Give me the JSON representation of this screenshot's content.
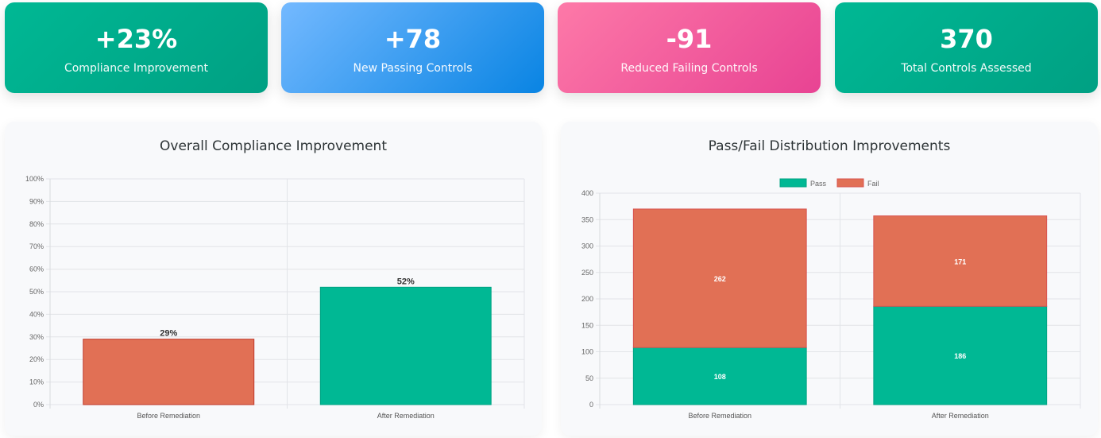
{
  "cards": [
    {
      "value": "+23%",
      "label": "Compliance Improvement",
      "color": "#00b894"
    },
    {
      "value": "+78",
      "label": "New Passing Controls",
      "color": "#0984e3"
    },
    {
      "value": "-91",
      "label": "Reduced Failing Controls",
      "color": "#e84393"
    },
    {
      "value": "370",
      "label": "Total Controls Assessed",
      "color": "#00b894"
    }
  ],
  "chart_data": [
    {
      "type": "bar",
      "title": "Overall Compliance Improvement",
      "categories": [
        "Before Remediation",
        "After Remediation"
      ],
      "values": [
        29,
        52
      ],
      "data_labels": [
        "29%",
        "52%"
      ],
      "colors": [
        "#e17055",
        "#00b894"
      ],
      "ylim": [
        0,
        100
      ],
      "yticks": [
        "0%",
        "10%",
        "20%",
        "30%",
        "40%",
        "50%",
        "60%",
        "70%",
        "80%",
        "90%",
        "100%"
      ],
      "grid": true
    },
    {
      "type": "bar",
      "stacked": true,
      "title": "Pass/Fail Distribution Improvements",
      "categories": [
        "Before Remediation",
        "After Remediation"
      ],
      "series": [
        {
          "name": "Pass",
          "values": [
            108,
            186
          ],
          "color": "#00b894"
        },
        {
          "name": "Fail",
          "values": [
            262,
            171
          ],
          "color": "#e17055"
        }
      ],
      "ylim": [
        0,
        400
      ],
      "yticks": [
        "0",
        "50",
        "100",
        "150",
        "200",
        "250",
        "300",
        "350",
        "400"
      ],
      "legend": "top",
      "grid": true
    }
  ]
}
